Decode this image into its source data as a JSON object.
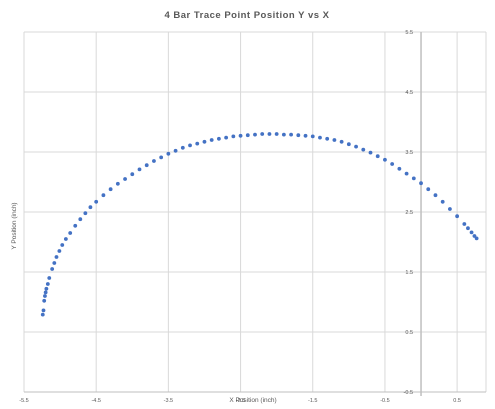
{
  "chart_data": {
    "type": "scatter",
    "title": "4 Bar Trace Point Position Y vs X",
    "xlabel": "X Position (inch)",
    "ylabel": "Y Position (inch)",
    "xlim": [
      -5.5,
      0.9
    ],
    "ylim": [
      -0.5,
      5.5
    ],
    "x_ticks": [
      "-5.5",
      "-4.5",
      "-3.5",
      "-2.5",
      "-1.5",
      "-0.5",
      "0.5"
    ],
    "x_tick_values": [
      -5.5,
      -4.5,
      -3.5,
      -2.5,
      -1.5,
      -0.5,
      0.5
    ],
    "y_ticks": [
      "5.5",
      "4.5",
      "3.5",
      "2.5",
      "1.5",
      "0.5",
      "-0.5"
    ],
    "y_tick_values": [
      5.5,
      4.5,
      3.5,
      2.5,
      1.5,
      0.5,
      -0.5
    ],
    "grid": true,
    "series": [
      {
        "color": "#4472c4",
        "points": [
          [
            -5.24,
            0.79
          ],
          [
            -5.23,
            0.86
          ],
          [
            -5.22,
            1.02
          ],
          [
            -5.21,
            1.1
          ],
          [
            -5.2,
            1.16
          ],
          [
            -5.19,
            1.22
          ],
          [
            -5.17,
            1.3
          ],
          [
            -5.15,
            1.4
          ],
          [
            -5.11,
            1.55
          ],
          [
            -5.08,
            1.65
          ],
          [
            -5.05,
            1.75
          ],
          [
            -5.01,
            1.85
          ],
          [
            -4.97,
            1.95
          ],
          [
            -4.92,
            2.05
          ],
          [
            -4.86,
            2.15
          ],
          [
            -4.79,
            2.27
          ],
          [
            -4.72,
            2.38
          ],
          [
            -4.65,
            2.48
          ],
          [
            -4.58,
            2.58
          ],
          [
            -4.5,
            2.67
          ],
          [
            -4.4,
            2.78
          ],
          [
            -4.3,
            2.88
          ],
          [
            -4.2,
            2.97
          ],
          [
            -4.1,
            3.05
          ],
          [
            -4.0,
            3.13
          ],
          [
            -3.9,
            3.21
          ],
          [
            -3.8,
            3.28
          ],
          [
            -3.7,
            3.35
          ],
          [
            -3.6,
            3.41
          ],
          [
            -3.5,
            3.47
          ],
          [
            -3.4,
            3.52
          ],
          [
            -3.3,
            3.57
          ],
          [
            -3.2,
            3.61
          ],
          [
            -3.1,
            3.64
          ],
          [
            -3.0,
            3.67
          ],
          [
            -2.9,
            3.7
          ],
          [
            -2.8,
            3.72
          ],
          [
            -2.7,
            3.74
          ],
          [
            -2.6,
            3.76
          ],
          [
            -2.5,
            3.77
          ],
          [
            -2.4,
            3.78
          ],
          [
            -2.3,
            3.79
          ],
          [
            -2.2,
            3.8
          ],
          [
            -2.1,
            3.8
          ],
          [
            -2.0,
            3.8
          ],
          [
            -1.9,
            3.79
          ],
          [
            -1.8,
            3.79
          ],
          [
            -1.7,
            3.78
          ],
          [
            -1.6,
            3.77
          ],
          [
            -1.5,
            3.76
          ],
          [
            -1.4,
            3.74
          ],
          [
            -1.3,
            3.72
          ],
          [
            -1.2,
            3.7
          ],
          [
            -1.1,
            3.67
          ],
          [
            -1.0,
            3.63
          ],
          [
            -0.9,
            3.59
          ],
          [
            -0.8,
            3.54
          ],
          [
            -0.7,
            3.49
          ],
          [
            -0.6,
            3.43
          ],
          [
            -0.5,
            3.37
          ],
          [
            -0.4,
            3.3
          ],
          [
            -0.3,
            3.22
          ],
          [
            -0.2,
            3.14
          ],
          [
            -0.1,
            3.06
          ],
          [
            0.0,
            2.98
          ],
          [
            0.1,
            2.88
          ],
          [
            0.2,
            2.78
          ],
          [
            0.3,
            2.67
          ],
          [
            0.4,
            2.55
          ],
          [
            0.5,
            2.43
          ],
          [
            0.6,
            2.3
          ],
          [
            0.65,
            2.23
          ],
          [
            0.7,
            2.16
          ],
          [
            0.74,
            2.1
          ],
          [
            0.77,
            2.06
          ]
        ]
      }
    ]
  }
}
